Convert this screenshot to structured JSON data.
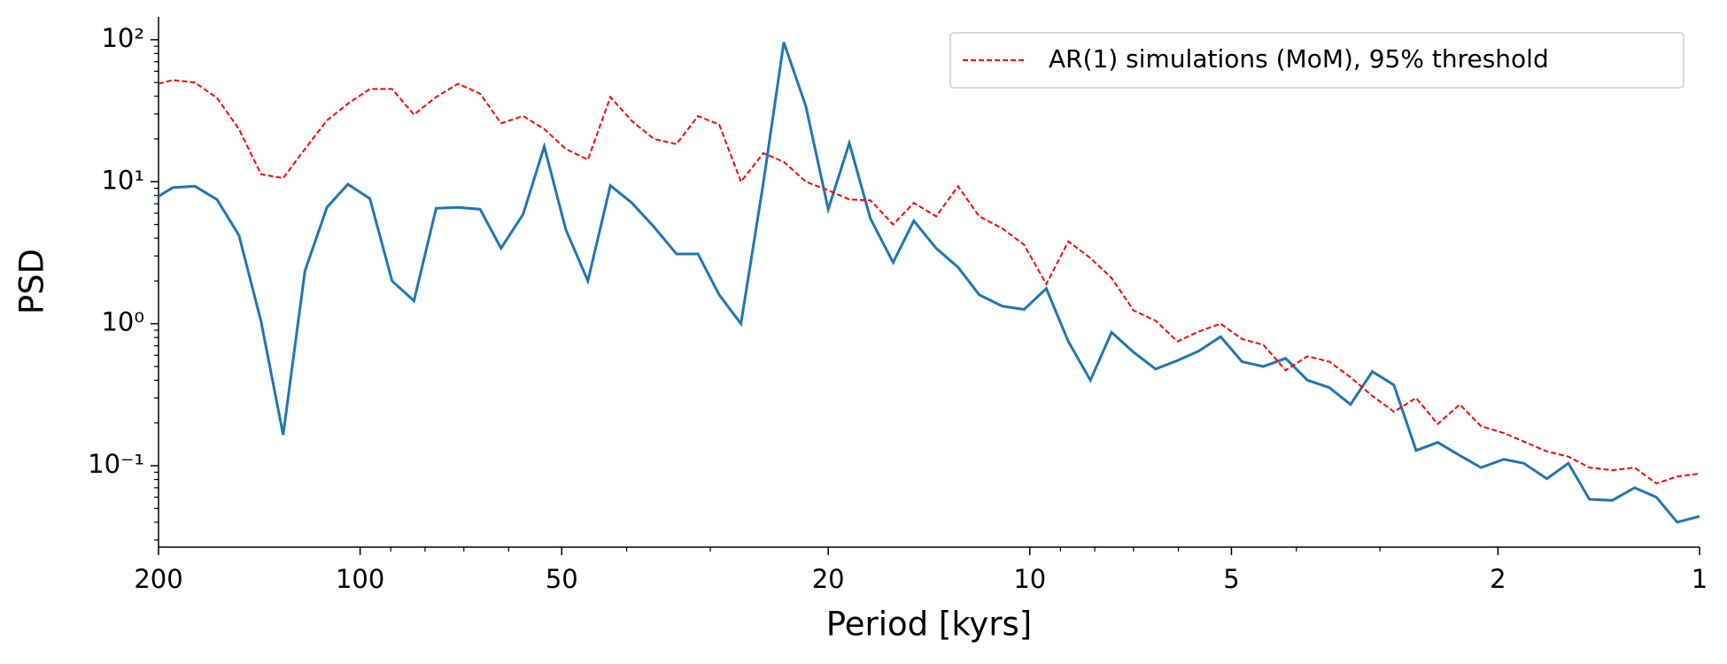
{
  "chart_data": {
    "type": "line",
    "xlabel": "Period [kyrs]",
    "ylabel": "PSD",
    "xscale": "log",
    "yscale": "log",
    "legend": "upper right",
    "x": [
      200,
      190.4,
      176.5,
      163.6,
      151.7,
      140.6,
      130.3,
      120.9,
      112.1,
      104.3,
      96.7,
      89.6,
      83.1,
      77.0,
      71.4,
      66.2,
      61.6,
      57.1,
      53.1,
      49.3,
      45.7,
      42.3,
      39.3,
      36.4,
      33.7,
      31.3,
      29.1,
      27.0,
      25.0,
      23.3,
      21.6,
      20.0,
      18.6,
      17.3,
      16.0,
      14.9,
      13.8,
      12.8,
      11.9,
      11.0,
      10.2,
      9.45,
      8.76,
      8.12,
      7.55,
      7.0,
      6.49,
      6.02,
      5.6,
      5.19,
      4.82,
      4.48,
      4.15,
      3.85,
      3.57,
      3.32,
      3.08,
      2.86,
      2.65,
      2.46,
      2.28,
      2.12,
      1.96,
      1.83,
      1.69,
      1.57,
      1.46,
      1.35,
      1.25,
      1.16,
      1.08,
      1
    ],
    "series": [
      {
        "color": "#1f77b4",
        "style": "solid",
        "values": [
          7.9,
          9.1,
          9.3,
          7.5,
          4.2,
          1.04,
          0.165,
          2.35,
          6.6,
          9.6,
          7.6,
          2.0,
          1.45,
          6.5,
          6.6,
          6.4,
          3.4,
          5.9,
          17.7,
          4.6,
          2.0,
          9.4,
          7.1,
          4.8,
          3.1,
          3.1,
          1.6,
          1.0,
          9.8,
          96,
          34,
          6.4,
          18.7,
          5.5,
          2.7,
          5.3,
          3.4,
          2.5,
          1.6,
          1.33,
          1.26,
          1.77,
          0.75,
          0.4,
          0.87,
          0.63,
          0.48,
          0.55,
          0.64,
          0.81,
          0.54,
          0.5,
          0.57,
          0.4,
          0.355,
          0.27,
          0.46,
          0.37,
          0.128,
          0.146,
          0.118,
          0.097,
          0.111,
          0.104,
          0.081,
          0.104,
          0.058,
          0.057,
          0.07,
          0.06,
          0.04,
          0.044
        ]
      },
      {
        "name": "AR(1) simulations (MoM), 95% threshold",
        "color": "#ff0000",
        "style": "dashed",
        "values": [
          49,
          52,
          50,
          39,
          23.5,
          11.3,
          10.6,
          17,
          27,
          35.5,
          45,
          45,
          29.7,
          39.5,
          49,
          41.7,
          25.8,
          29,
          23.5,
          17,
          14.3,
          39.5,
          26.8,
          20,
          18.4,
          29,
          25.3,
          10,
          15.9,
          13.8,
          10,
          8.7,
          7.5,
          7.4,
          5.0,
          7.1,
          5.7,
          9.3,
          5.7,
          4.7,
          3.6,
          1.9,
          3.8,
          2.9,
          2.1,
          1.24,
          1.05,
          0.75,
          0.88,
          1.0,
          0.78,
          0.71,
          0.47,
          0.59,
          0.54,
          0.42,
          0.31,
          0.24,
          0.3,
          0.197,
          0.27,
          0.19,
          0.17,
          0.148,
          0.126,
          0.116,
          0.097,
          0.093,
          0.097,
          0.075,
          0.084,
          0.088
        ]
      }
    ],
    "xlim": [
      200,
      1
    ],
    "ylim": [
      0.0267,
      145
    ],
    "xticks": [
      200,
      100,
      50,
      20,
      10,
      5,
      2,
      1
    ],
    "xminorticks": [
      90,
      80,
      70,
      60,
      40,
      30,
      9,
      8,
      7,
      6,
      4,
      3
    ],
    "yticks": [
      {
        "value": 0.1,
        "label": "10⁻¹"
      },
      {
        "value": 1,
        "label": "10⁰"
      },
      {
        "value": 10,
        "label": "10¹"
      },
      {
        "value": 100,
        "label": "10²"
      }
    ],
    "yminorticks": [
      0.03,
      0.04,
      0.05,
      0.06,
      0.07,
      0.08,
      0.09,
      0.2,
      0.3,
      0.4,
      0.5,
      0.6,
      0.7,
      0.8,
      0.9,
      2,
      3,
      4,
      5,
      6,
      7,
      8,
      9,
      20,
      30,
      40,
      50,
      60,
      70,
      80,
      90
    ]
  }
}
